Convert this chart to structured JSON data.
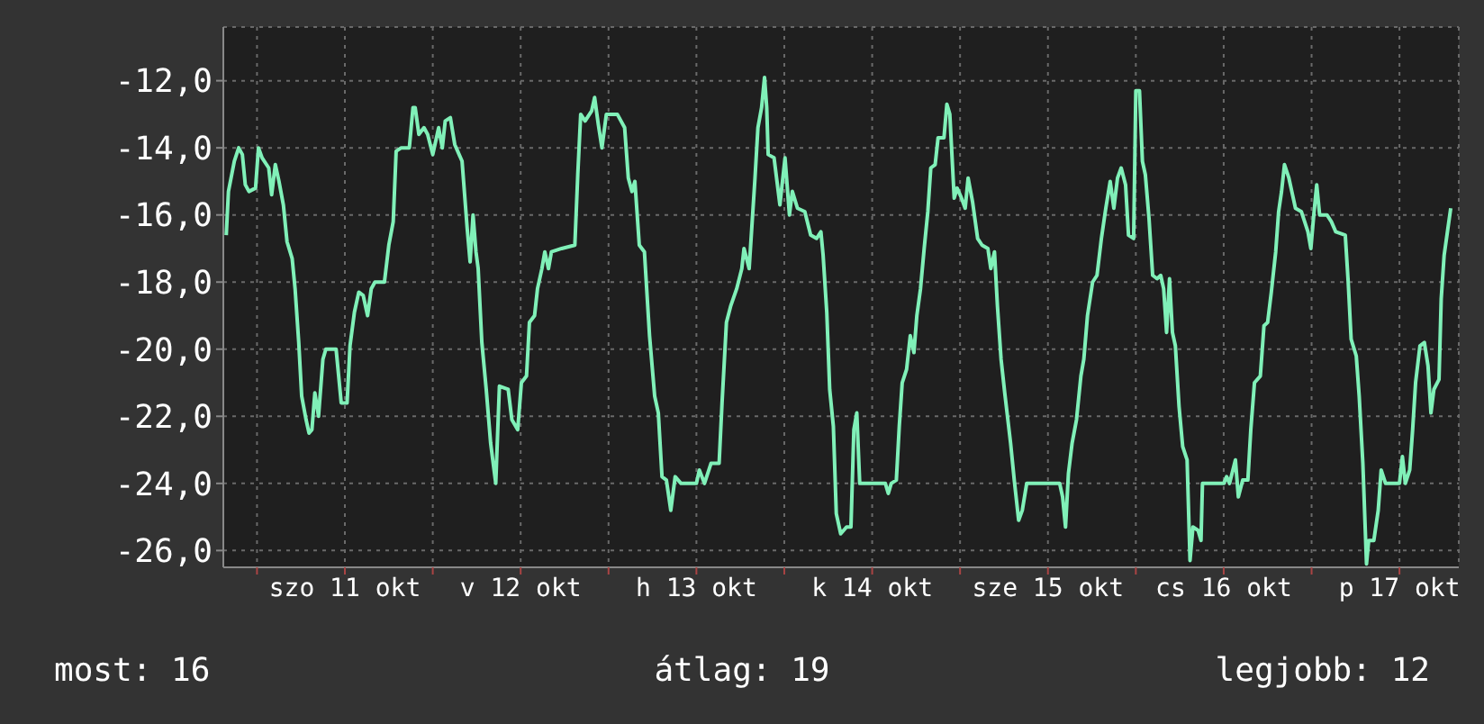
{
  "chart_data": {
    "type": "line",
    "color": "#80f0b8",
    "x": [
      "--10-10T19:48",
      "--10-10T20:06",
      "--10-10T20:54",
      "--10-10T21:30",
      "--10-10T22:00",
      "--10-10T22:24",
      "--10-10T22:54",
      "--10-10T23:48",
      "--10-11T00:12",
      "--10-11T00:42",
      "--10-11T01:36",
      "--10-11T02:00",
      "--10-11T02:30",
      "--10-11T03:00",
      "--10-11T03:36",
      "--10-11T04:06",
      "--10-11T04:48",
      "--10-11T05:12",
      "--10-11T05:42",
      "--10-11T06:06",
      "--10-11T06:42",
      "--10-11T07:06",
      "--10-11T07:30",
      "--10-11T07:54",
      "--10-11T08:24",
      "--10-11T09:00",
      "--10-11T09:24",
      "--10-11T10:48",
      "--10-11T11:30",
      "--10-11T12:18",
      "--10-11T12:42",
      "--10-11T13:18",
      "--10-11T13:54",
      "--10-11T14:30",
      "--10-11T15:06",
      "--10-11T15:36",
      "--10-11T16:06",
      "--10-11T17:24",
      "--10-11T18:00",
      "--10-11T18:36",
      "--10-11T19:00",
      "--10-11T19:42",
      "--10-11T20:48",
      "--10-11T21:18",
      "--10-11T21:36",
      "--10-11T22:06",
      "--10-11T22:48",
      "--10-11T23:18",
      "--10-12T00:00",
      "--10-12T00:48",
      "--10-12T01:18",
      "--10-12T01:42",
      "--10-12T02:24",
      "--10-12T03:00",
      "--10-12T04:00",
      "--10-12T04:42",
      "--10-12T05:06",
      "--10-12T05:30",
      "--10-12T05:54",
      "--10-12T06:12",
      "--10-12T06:42",
      "--10-12T07:18",
      "--10-12T07:54",
      "--10-12T08:36",
      "--10-12T09:06",
      "--10-12T10:18",
      "--10-12T10:48",
      "--10-12T11:36",
      "--10-12T12:06",
      "--10-12T12:48",
      "--10-12T13:12",
      "--10-12T13:54",
      "--10-12T14:18",
      "--10-12T14:54",
      "--10-12T15:18",
      "--10-12T15:48",
      "--10-12T16:12",
      "--10-12T17:36",
      "--10-12T19:24",
      "--10-12T19:48",
      "--10-12T20:12",
      "--10-12T20:48",
      "--10-12T21:42",
      "--10-12T22:06",
      "--10-12T22:36",
      "--10-12T23:06",
      "--10-12T23:42",
      "--10-13T01:12",
      "--10-13T02:12",
      "--10-13T02:42",
      "--10-13T03:12",
      "--10-13T03:36",
      "--10-13T04:12",
      "--10-13T04:54",
      "--10-13T05:36",
      "--10-13T06:18",
      "--10-13T06:48",
      "--10-13T07:18",
      "--10-13T07:54",
      "--10-13T08:30",
      "--10-13T09:06",
      "--10-13T09:54",
      "--10-13T12:00",
      "--10-13T12:24",
      "--10-13T13:06",
      "--10-13T14:00",
      "--10-13T15:06",
      "--10-13T15:30",
      "--10-13T16:06",
      "--10-13T16:42",
      "--10-13T17:30",
      "--10-13T18:12",
      "--10-13T18:30",
      "--10-13T19:12",
      "--10-13T20:00",
      "--10-13T20:24",
      "--10-13T20:54",
      "--10-13T21:18",
      "--10-13T21:36",
      "--10-13T21:48",
      "--10-13T22:36",
      "--10-13T23:24",
      "--10-14T00:06",
      "--10-14T00:42",
      "--10-14T01:06",
      "--10-14T01:48",
      "--10-14T02:48",
      "--10-14T03:36",
      "--10-14T04:24",
      "--10-14T05:00",
      "--10-14T05:18",
      "--10-14T05:48",
      "--10-14T06:12",
      "--10-14T06:42",
      "--10-14T07:06",
      "--10-14T07:42",
      "--10-14T08:30",
      "--10-14T09:06",
      "--10-14T09:30",
      "--10-14T09:54",
      "--10-14T10:18",
      "--10-14T13:48",
      "--10-14T14:12",
      "--10-14T14:36",
      "--10-14T15:18",
      "--10-14T15:42",
      "--10-14T16:06",
      "--10-14T16:42",
      "--10-14T17:12",
      "--10-14T17:42",
      "--10-14T18:06",
      "--10-14T18:36",
      "--10-14T19:06",
      "--10-14T19:36",
      "--10-14T20:00",
      "--10-14T20:36",
      "--10-14T21:00",
      "--10-14T21:48",
      "--10-14T22:12",
      "--10-14T22:36",
      "--10-14T23:12",
      "--10-14T23:36",
      "--10-15T00:12",
      "--10-15T00:42",
      "--10-15T01:06",
      "--10-15T01:42",
      "--10-15T02:24",
      "--10-15T03:00",
      "--10-15T03:48",
      "--10-15T04:12",
      "--10-15T04:42",
      "--10-15T05:06",
      "--10-15T05:36",
      "--10-15T06:06",
      "--10-15T06:54",
      "--10-15T07:24",
      "--10-15T08:00",
      "--10-15T08:30",
      "--10-15T09:06",
      "--10-15T13:36",
      "--10-15T14:00",
      "--10-15T14:24",
      "--10-15T14:48",
      "--10-15T15:18",
      "--10-15T15:54",
      "--10-15T16:30",
      "--10-15T16:54",
      "--10-15T17:24",
      "--10-15T18:06",
      "--10-15T18:42",
      "--10-15T19:18",
      "--10-15T19:54",
      "--10-15T20:30",
      "--10-15T21:00",
      "--10-15T21:30",
      "--10-15T22:00",
      "--10-15T22:36",
      "--10-15T23:00",
      "--10-15T23:42",
      "--10-16T00:00",
      "--10-16T00:30",
      "--10-16T00:54",
      "--10-16T01:18",
      "--10-16T01:48",
      "--10-16T02:18",
      "--10-16T02:54",
      "--10-16T03:24",
      "--10-16T03:48",
      "--10-16T04:12",
      "--10-16T04:36",
      "--10-16T05:00",
      "--10-16T05:24",
      "--10-16T05:54",
      "--10-16T06:24",
      "--10-16T07:00",
      "--10-16T07:24",
      "--10-16T07:48",
      "--10-16T08:30",
      "--10-16T08:54",
      "--10-16T09:06",
      "--10-16T12:00",
      "--10-16T12:24",
      "--10-16T12:48",
      "--10-16T13:36",
      "--10-16T14:00",
      "--10-16T14:36",
      "--10-16T15:18",
      "--10-16T15:42",
      "--10-16T16:12",
      "--10-16T17:00",
      "--10-16T17:30",
      "--10-16T18:00",
      "--10-16T18:30",
      "--10-16T19:06",
      "--10-16T19:30",
      "--10-16T19:54",
      "--10-16T20:18",
      "--10-16T20:54",
      "--10-16T21:24",
      "--10-16T21:48",
      "--10-16T22:36",
      "--10-16T23:30",
      "--10-16T23:54",
      "--10-17T00:18",
      "--10-17T00:42",
      "--10-17T01:06",
      "--10-17T02:06",
      "--10-17T02:42",
      "--10-17T03:18",
      "--10-17T04:36",
      "--10-17T05:00",
      "--10-17T05:24",
      "--10-17T06:06",
      "--10-17T06:30",
      "--10-17T07:00",
      "--10-17T07:30",
      "--10-17T07:48",
      "--10-17T08:30",
      "--10-17T09:06",
      "--10-17T09:30",
      "--10-17T10:06",
      "--10-17T12:00",
      "--10-17T12:24",
      "--10-17T12:48",
      "--10-17T13:24",
      "--10-17T13:48",
      "--10-17T14:12",
      "--10-17T14:48",
      "--10-17T15:24",
      "--10-17T15:54",
      "--10-17T16:18",
      "--10-17T16:42",
      "--10-17T17:24",
      "--10-17T17:42",
      "--10-17T18:06",
      "--10-17T19:00"
    ],
    "values": [
      -16.6,
      -15.3,
      -14.4,
      -14.0,
      -14.2,
      -15.1,
      -15.3,
      -15.2,
      -14.0,
      -14.3,
      -14.6,
      -15.4,
      -14.5,
      -15.0,
      -15.7,
      -16.8,
      -17.3,
      -18.2,
      -19.8,
      -21.4,
      -22.1,
      -22.5,
      -22.4,
      -21.3,
      -22.0,
      -20.3,
      -20.0,
      -20.0,
      -21.6,
      -21.6,
      -19.9,
      -18.9,
      -18.3,
      -18.4,
      -19.0,
      -18.2,
      -18.0,
      -18.0,
      -16.9,
      -16.2,
      -14.1,
      -14.0,
      -14.0,
      -12.8,
      -12.8,
      -13.6,
      -13.4,
      -13.6,
      -14.2,
      -13.4,
      -14.0,
      -13.2,
      -13.1,
      -13.9,
      -14.4,
      -16.4,
      -17.4,
      -16.0,
      -17.1,
      -17.6,
      -19.8,
      -21.2,
      -22.8,
      -24.0,
      -21.1,
      -21.2,
      -22.1,
      -22.4,
      -21.0,
      -20.8,
      -19.2,
      -19.0,
      -18.2,
      -17.6,
      -17.1,
      -17.6,
      -17.1,
      -17.0,
      -16.9,
      -14.8,
      -13.0,
      -13.2,
      -12.9,
      -12.5,
      -13.3,
      -14.0,
      -13.0,
      -13.0,
      -13.4,
      -14.9,
      -15.3,
      -15.0,
      -16.9,
      -17.1,
      -19.6,
      -21.4,
      -21.9,
      -23.8,
      -23.9,
      -24.8,
      -23.8,
      -24.0,
      -24.0,
      -23.6,
      -24.0,
      -23.4,
      -23.4,
      -21.6,
      -19.2,
      -18.7,
      -18.2,
      -17.6,
      -17.0,
      -17.6,
      -14.9,
      -13.4,
      -12.8,
      -11.9,
      -12.8,
      -14.2,
      -14.3,
      -15.7,
      -14.3,
      -16.0,
      -15.3,
      -15.8,
      -15.9,
      -16.6,
      -16.7,
      -16.5,
      -17.2,
      -18.9,
      -21.2,
      -22.3,
      -24.9,
      -25.5,
      -25.3,
      -25.3,
      -22.4,
      -21.9,
      -24.0,
      -24.0,
      -24.3,
      -24.0,
      -23.9,
      -22.3,
      -21.0,
      -20.6,
      -19.6,
      -20.1,
      -19.0,
      -18.2,
      -17.0,
      -15.9,
      -14.6,
      -14.5,
      -13.7,
      -13.7,
      -12.7,
      -13.0,
      -15.5,
      -15.2,
      -15.5,
      -15.8,
      -14.9,
      -15.6,
      -16.7,
      -16.9,
      -17.0,
      -17.6,
      -17.1,
      -18.7,
      -20.3,
      -21.3,
      -22.8,
      -23.9,
      -25.1,
      -24.8,
      -24.0,
      -24.0,
      -24.4,
      -25.3,
      -23.7,
      -22.8,
      -22.1,
      -20.8,
      -20.3,
      -19.0,
      -18.0,
      -17.8,
      -16.7,
      -15.8,
      -15.0,
      -15.8,
      -14.9,
      -14.6,
      -15.1,
      -16.6,
      -16.7,
      -12.3,
      -12.3,
      -14.4,
      -14.8,
      -16.1,
      -17.8,
      -17.9,
      -17.8,
      -18.2,
      -19.5,
      -17.9,
      -19.5,
      -19.9,
      -21.7,
      -22.9,
      -23.3,
      -26.3,
      -25.3,
      -25.4,
      -25.7,
      -24.0,
      -24.0,
      -23.8,
      -24.0,
      -23.3,
      -24.4,
      -23.9,
      -23.9,
      -22.4,
      -21.0,
      -20.8,
      -19.3,
      -19.2,
      -18.3,
      -17.1,
      -15.9,
      -15.3,
      -14.5,
      -14.9,
      -15.4,
      -15.8,
      -15.9,
      -16.5,
      -17.0,
      -16.0,
      -15.1,
      -16.0,
      -16.0,
      -16.2,
      -16.5,
      -16.6,
      -18.0,
      -19.7,
      -20.2,
      -21.4,
      -23.4,
      -26.4,
      -25.7,
      -25.7,
      -24.8,
      -23.6,
      -24.0,
      -24.0,
      -23.2,
      -24.0,
      -23.6,
      -22.4,
      -21.0,
      -19.9,
      -19.8,
      -20.5,
      -21.9,
      -21.2,
      -20.9,
      -18.5,
      -17.2,
      -15.8
    ],
    "xlim": [
      "--10-10T19:24",
      "--10-17T20:06"
    ],
    "ylim": [
      -26.5,
      -10.4
    ],
    "xticks": [
      {
        "value": "--10-11T00:00",
        "label": null
      },
      {
        "value": "--10-11T12:00",
        "label": "szo 11 okt"
      },
      {
        "value": "--10-12T00:00",
        "label": null
      },
      {
        "value": "--10-12T12:00",
        "label": "v 12 okt"
      },
      {
        "value": "--10-13T00:00",
        "label": null
      },
      {
        "value": "--10-13T12:00",
        "label": "h 13 okt"
      },
      {
        "value": "--10-14T00:00",
        "label": null
      },
      {
        "value": "--10-14T12:00",
        "label": "k 14 okt"
      },
      {
        "value": "--10-15T00:00",
        "label": null
      },
      {
        "value": "--10-15T12:00",
        "label": "sze 15 okt"
      },
      {
        "value": "--10-16T00:00",
        "label": null
      },
      {
        "value": "--10-16T12:00",
        "label": "cs 16 okt"
      },
      {
        "value": "--10-17T00:00",
        "label": null
      },
      {
        "value": "--10-17T12:00",
        "label": "p 17 okt"
      }
    ],
    "yticks": [
      {
        "value": -12,
        "label": "-12,0"
      },
      {
        "value": -14,
        "label": "-14,0"
      },
      {
        "value": -16,
        "label": "-16,0"
      },
      {
        "value": -18,
        "label": "-18,0"
      },
      {
        "value": -20,
        "label": "-20,0"
      },
      {
        "value": -22,
        "label": "-22,0"
      },
      {
        "value": -24,
        "label": "-24,0"
      },
      {
        "value": -26,
        "label": "-26,0"
      }
    ],
    "grid": true,
    "marker": "none",
    "annotations": [
      "most: 16",
      "átlag: 19",
      "legjobb: 12"
    ]
  }
}
